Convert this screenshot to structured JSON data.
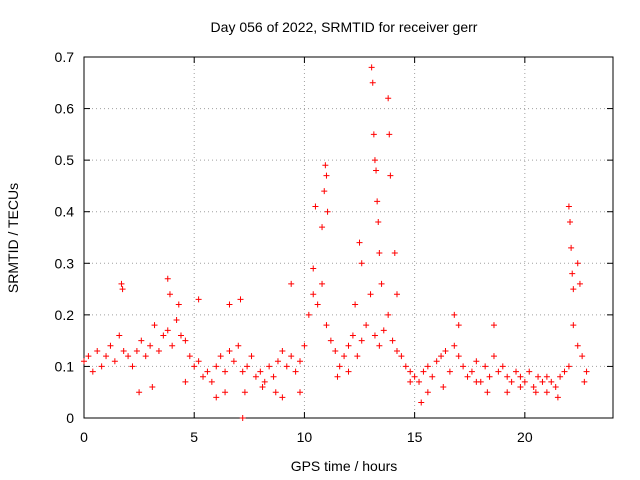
{
  "chart_data": {
    "type": "scatter",
    "title": "Day 056 of 2022, SRMTID for receiver gerr",
    "xlabel": "GPS time / hours",
    "ylabel": "SRMTID / TECUs",
    "xlim": [
      0,
      24
    ],
    "ylim": [
      0,
      0.7
    ],
    "xticks": [
      0,
      5,
      10,
      15,
      20
    ],
    "xtick_labels": [
      "0",
      "5",
      "10",
      "15",
      "20"
    ],
    "yticks": [
      0,
      0.1,
      0.2,
      0.3,
      0.4,
      0.5,
      0.6,
      0.7
    ],
    "ytick_labels": [
      "0",
      "0.1",
      "0.2",
      "0.3",
      "0.4",
      "0.5",
      "0.6",
      "0.7"
    ],
    "grid": true,
    "marker": "+",
    "series": [
      {
        "name": "SRMTID",
        "color": "#ff0000",
        "x": [
          0.0,
          0.2,
          0.4,
          0.6,
          0.8,
          1.0,
          1.2,
          1.4,
          1.6,
          1.8,
          2.0,
          2.2,
          2.4,
          2.6,
          2.8,
          3.0,
          3.2,
          3.4,
          3.6,
          3.8,
          4.0,
          4.2,
          4.4,
          4.6,
          4.8,
          5.0,
          5.2,
          5.4,
          5.6,
          5.8,
          6.0,
          6.2,
          6.4,
          6.6,
          6.8,
          7.0,
          7.2,
          7.4,
          7.6,
          7.8,
          8.0,
          8.2,
          8.4,
          8.6,
          8.8,
          9.0,
          9.2,
          9.4,
          9.6,
          9.8,
          10.0,
          10.2,
          10.4,
          10.6,
          10.8,
          11.0,
          11.2,
          11.4,
          11.6,
          11.8,
          12.0,
          12.2,
          12.4,
          12.6,
          12.8,
          13.0,
          13.2,
          13.4,
          13.6,
          13.8,
          14.0,
          14.2,
          14.4,
          14.6,
          14.8,
          15.0,
          15.2,
          15.4,
          15.6,
          15.8,
          16.0,
          16.2,
          16.4,
          16.6,
          16.8,
          17.0,
          17.2,
          17.4,
          17.6,
          17.8,
          18.0,
          18.2,
          18.4,
          18.6,
          18.8,
          19.0,
          19.2,
          19.4,
          19.6,
          19.8,
          20.0,
          20.2,
          20.4,
          20.6,
          20.8,
          21.0,
          21.2,
          21.4,
          21.6,
          21.8,
          22.0,
          22.2,
          22.4,
          22.6,
          22.8,
          1.7,
          1.75,
          3.8,
          3.9,
          4.3,
          5.2,
          6.6,
          7.1,
          7.2,
          9.4,
          10.4,
          10.5,
          10.8,
          10.9,
          10.95,
          11.0,
          11.05,
          12.3,
          12.5,
          12.6,
          13.05,
          13.1,
          13.15,
          13.2,
          13.25,
          13.3,
          13.35,
          13.4,
          13.5,
          13.8,
          13.85,
          13.9,
          14.1,
          14.2,
          16.8,
          17.0,
          18.6,
          22.0,
          22.05,
          22.1,
          22.15,
          22.2,
          22.4,
          22.5,
          2.5,
          3.1,
          4.6,
          6.0,
          6.4,
          7.3,
          8.1,
          8.7,
          9.0,
          9.8,
          11.5,
          12.0,
          14.8,
          15.3,
          15.6,
          16.3,
          17.8,
          18.3,
          19.2,
          19.8,
          20.5,
          21.0,
          21.5,
          22.7
        ],
        "y": [
          0.11,
          0.12,
          0.09,
          0.13,
          0.1,
          0.12,
          0.14,
          0.11,
          0.16,
          0.13,
          0.12,
          0.1,
          0.13,
          0.15,
          0.12,
          0.14,
          0.18,
          0.13,
          0.16,
          0.17,
          0.14,
          0.19,
          0.16,
          0.15,
          0.12,
          0.1,
          0.11,
          0.08,
          0.09,
          0.07,
          0.1,
          0.12,
          0.09,
          0.13,
          0.11,
          0.14,
          0.09,
          0.1,
          0.12,
          0.08,
          0.09,
          0.07,
          0.1,
          0.08,
          0.11,
          0.13,
          0.1,
          0.12,
          0.09,
          0.11,
          0.14,
          0.2,
          0.24,
          0.22,
          0.26,
          0.18,
          0.15,
          0.13,
          0.1,
          0.12,
          0.14,
          0.16,
          0.12,
          0.15,
          0.18,
          0.24,
          0.16,
          0.14,
          0.17,
          0.2,
          0.15,
          0.13,
          0.12,
          0.1,
          0.09,
          0.08,
          0.07,
          0.09,
          0.1,
          0.08,
          0.11,
          0.12,
          0.13,
          0.09,
          0.14,
          0.12,
          0.1,
          0.08,
          0.09,
          0.11,
          0.07,
          0.1,
          0.08,
          0.12,
          0.09,
          0.1,
          0.08,
          0.07,
          0.09,
          0.08,
          0.07,
          0.09,
          0.06,
          0.08,
          0.07,
          0.08,
          0.07,
          0.06,
          0.08,
          0.09,
          0.1,
          0.18,
          0.14,
          0.12,
          0.09,
          0.26,
          0.25,
          0.27,
          0.24,
          0.22,
          0.23,
          0.22,
          0.23,
          0.0,
          0.26,
          0.29,
          0.41,
          0.37,
          0.44,
          0.49,
          0.47,
          0.4,
          0.22,
          0.34,
          0.3,
          0.68,
          0.65,
          0.55,
          0.5,
          0.48,
          0.42,
          0.38,
          0.32,
          0.26,
          0.62,
          0.55,
          0.47,
          0.32,
          0.24,
          0.2,
          0.18,
          0.18,
          0.41,
          0.38,
          0.33,
          0.28,
          0.25,
          0.3,
          0.26,
          0.05,
          0.06,
          0.07,
          0.04,
          0.05,
          0.05,
          0.06,
          0.05,
          0.04,
          0.05,
          0.08,
          0.09,
          0.07,
          0.03,
          0.05,
          0.06,
          0.07,
          0.05,
          0.05,
          0.06,
          0.05,
          0.05,
          0.04,
          0.07
        ]
      }
    ]
  }
}
